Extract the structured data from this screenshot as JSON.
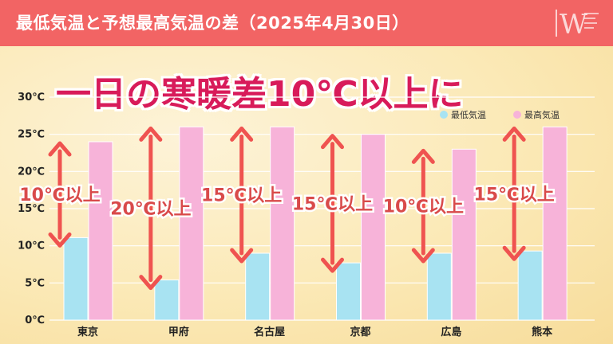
{
  "header": {
    "title": "最低気温と予想最高気温の差（2025年4月30日）"
  },
  "logo": {
    "icon": "weathernews-logo-icon",
    "letter": "W"
  },
  "headline": "一日の寒暖差10℃以上に",
  "colors": {
    "header": "#f26464",
    "min_bar": "#a8e3f2",
    "max_bar": "#f7b3d9",
    "arrow": "#ef5350",
    "headline": "#d81b5a"
  },
  "chart_data": {
    "type": "bar",
    "title": "",
    "xlabel": "",
    "ylabel": "",
    "categories": [
      "東京",
      "甲府",
      "名古屋",
      "京都",
      "広島",
      "熊本"
    ],
    "series": [
      {
        "name": "最低気温",
        "values": [
          11.1,
          5.4,
          9.0,
          7.7,
          9.0,
          9.3
        ]
      },
      {
        "name": "最高気温",
        "values": [
          24,
          26,
          26,
          25,
          23,
          26
        ]
      }
    ],
    "ylim": [
      0,
      30
    ],
    "yticks": [
      0,
      5,
      10,
      15,
      20,
      25,
      30
    ],
    "ytick_labels": [
      "0℃",
      "5℃",
      "10℃",
      "15℃",
      "20℃",
      "25℃",
      "30℃"
    ],
    "grid": true,
    "legend": "top-right",
    "annotations": [
      "10℃以上",
      "20℃以上",
      "15℃以上",
      "15℃以上",
      "10℃以上",
      "15℃以上"
    ]
  }
}
